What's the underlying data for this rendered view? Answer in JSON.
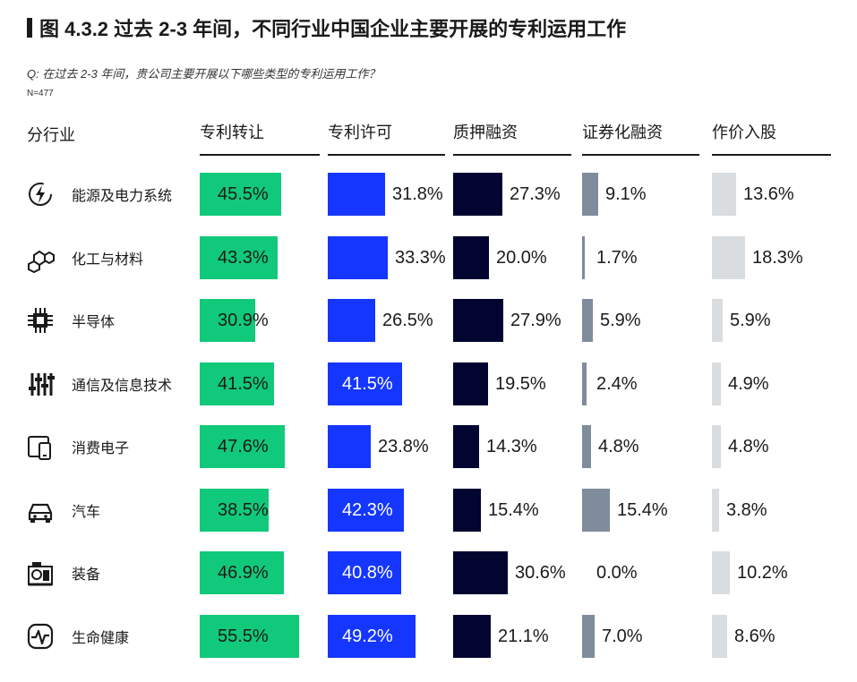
{
  "title": "图 4.3.2 过去 2-3 年间，不同行业中国企业主要开展的专利运用工作",
  "question": "Q: 在过去 2-3 年间，贵公司主要开展以下哪些类型的专利运用工作？",
  "sample_size": "N=477",
  "row_header": "分行业",
  "chart_data": {
    "type": "table",
    "title": "图 4.3.2 过去 2-3 年间，不同行业中国企业主要开展的专利运用工作",
    "unit": "%",
    "columns": [
      {
        "name": "专利转让",
        "color": "#11c97a"
      },
      {
        "name": "专利许可",
        "color": "#1436ff"
      },
      {
        "name": "质押融资",
        "color": "#020530"
      },
      {
        "name": "证券化融资",
        "color": "#7f8c9b"
      },
      {
        "name": "作价入股",
        "color": "#d9dddf"
      }
    ],
    "rows": [
      {
        "industry": "能源及电力系统",
        "icon": "energy-icon",
        "values": [
          45.5,
          31.8,
          27.3,
          9.1,
          13.6
        ],
        "labels": [
          "45.5%",
          "31.8%",
          "27.3%",
          "9.1%",
          "13.6%"
        ]
      },
      {
        "industry": "化工与材料",
        "icon": "molecule-icon",
        "values": [
          43.3,
          33.3,
          20.0,
          1.7,
          18.3
        ],
        "labels": [
          "43.3%",
          "33.3%",
          "20.0%",
          "1.7%",
          "18.3%"
        ]
      },
      {
        "industry": "半导体",
        "icon": "chip-icon",
        "values": [
          30.9,
          26.5,
          27.9,
          5.9,
          5.9
        ],
        "labels": [
          "30.9%",
          "26.5%",
          "27.9%",
          "5.9%",
          "5.9%"
        ]
      },
      {
        "industry": "通信及信息技术",
        "icon": "sliders-icon",
        "values": [
          41.5,
          41.5,
          19.5,
          2.4,
          4.9
        ],
        "labels": [
          "41.5%",
          "41.5%",
          "19.5%",
          "2.4%",
          "4.9%"
        ]
      },
      {
        "industry": "消费电子",
        "icon": "devices-icon",
        "values": [
          47.6,
          23.8,
          14.3,
          4.8,
          4.8
        ],
        "labels": [
          "47.6%",
          "23.8%",
          "14.3%",
          "4.8%",
          "4.8%"
        ]
      },
      {
        "industry": "汽车",
        "icon": "car-icon",
        "values": [
          38.5,
          42.3,
          15.4,
          15.4,
          3.8
        ],
        "labels": [
          "38.5%",
          "42.3%",
          "15.4%",
          "15.4%",
          "3.8%"
        ]
      },
      {
        "industry": "装备",
        "icon": "machine-icon",
        "values": [
          46.9,
          40.8,
          30.6,
          0.0,
          10.2
        ],
        "labels": [
          "46.9%",
          "40.8%",
          "30.6%",
          "0.0%",
          "10.2%"
        ]
      },
      {
        "industry": "生命健康",
        "icon": "pulse-icon",
        "values": [
          55.5,
          49.2,
          21.1,
          7.0,
          8.6
        ],
        "labels": [
          "55.5%",
          "49.2%",
          "21.1%",
          "7.0%",
          "8.6%"
        ]
      }
    ]
  }
}
